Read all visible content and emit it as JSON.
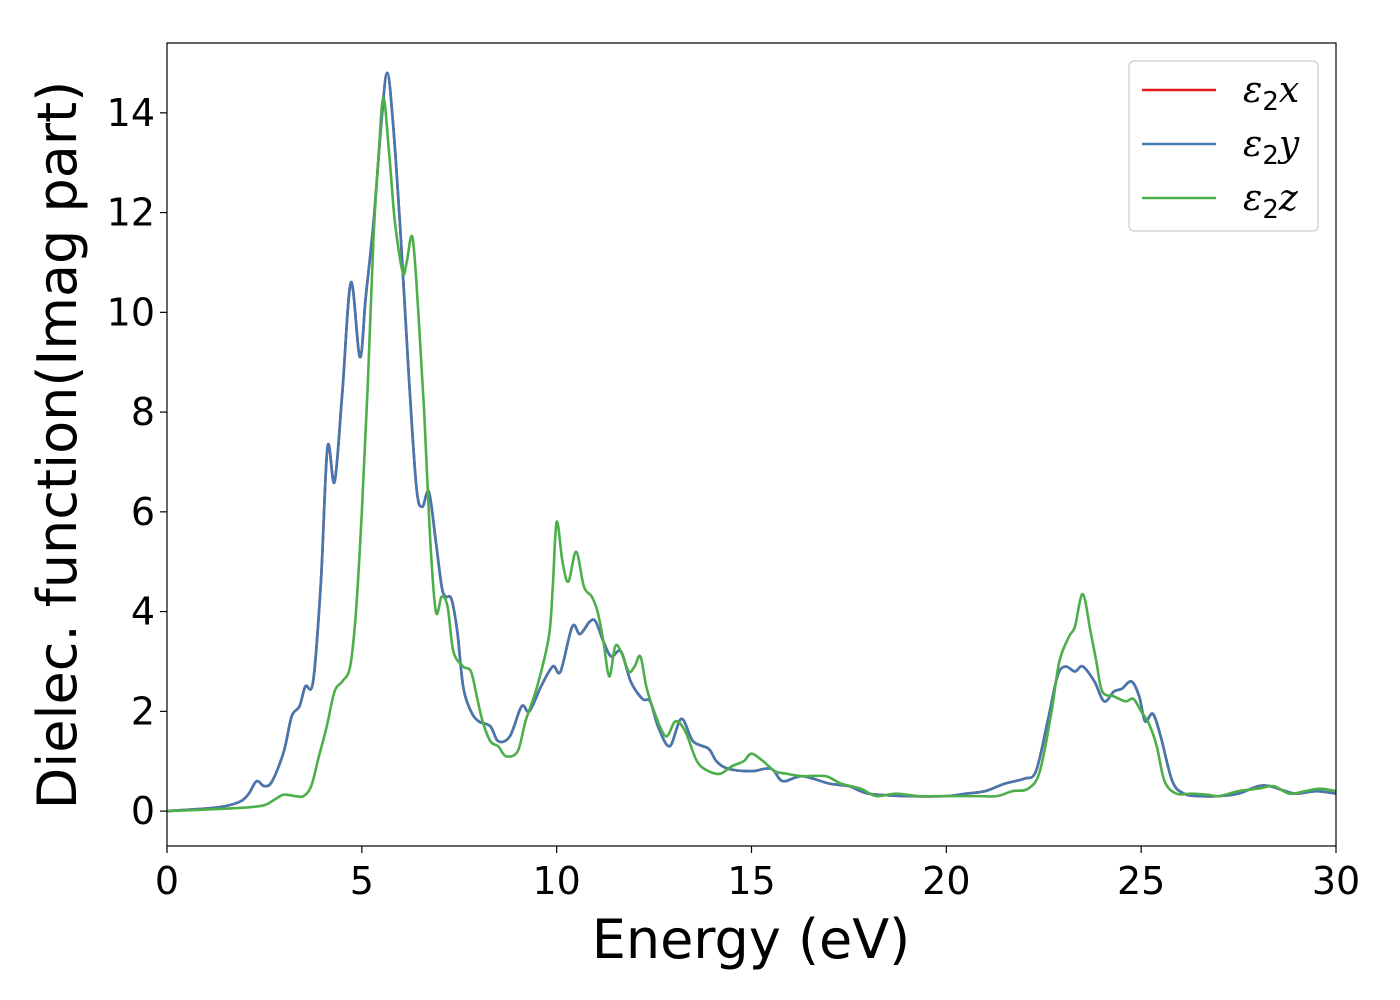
{
  "chart_data": {
    "type": "line",
    "title": "",
    "xlabel": "Energy (eV)",
    "ylabel": "Dielec. function(Imag part)",
    "xlim": [
      0,
      30
    ],
    "ylim": [
      -0.7,
      15.4
    ],
    "xticks": [
      0,
      5,
      10,
      15,
      20,
      25,
      30
    ],
    "yticks": [
      0,
      2,
      4,
      6,
      8,
      10,
      12,
      14
    ],
    "grid": false,
    "legend_position": "top-right",
    "series": [
      {
        "name_main": "ε",
        "name_sub": "2",
        "name_axis": "x",
        "color": "#e41a1c",
        "points": [
          [
            0,
            0
          ],
          [
            1,
            0.05
          ],
          [
            1.5,
            0.1
          ],
          [
            1.9,
            0.2
          ],
          [
            2.1,
            0.35
          ],
          [
            2.3,
            0.6
          ],
          [
            2.5,
            0.5
          ],
          [
            2.7,
            0.6
          ],
          [
            3,
            1.2
          ],
          [
            3.2,
            1.9
          ],
          [
            3.4,
            2.1
          ],
          [
            3.55,
            2.5
          ],
          [
            3.75,
            2.6
          ],
          [
            3.95,
            4.6
          ],
          [
            4.12,
            7.3
          ],
          [
            4.3,
            6.6
          ],
          [
            4.5,
            8.4
          ],
          [
            4.72,
            10.6
          ],
          [
            4.95,
            9.1
          ],
          [
            5.1,
            10.3
          ],
          [
            5.3,
            11.8
          ],
          [
            5.5,
            13.8
          ],
          [
            5.65,
            14.8
          ],
          [
            5.8,
            13.8
          ],
          [
            6.0,
            11.5
          ],
          [
            6.2,
            8.8
          ],
          [
            6.4,
            6.5
          ],
          [
            6.55,
            6.1
          ],
          [
            6.72,
            6.4
          ],
          [
            6.9,
            5.4
          ],
          [
            7.05,
            4.5
          ],
          [
            7.15,
            4.3
          ],
          [
            7.3,
            4.25
          ],
          [
            7.45,
            3.6
          ],
          [
            7.6,
            2.5
          ],
          [
            7.8,
            2.0
          ],
          [
            8.0,
            1.8
          ],
          [
            8.3,
            1.7
          ],
          [
            8.5,
            1.4
          ],
          [
            8.8,
            1.5
          ],
          [
            9.1,
            2.1
          ],
          [
            9.3,
            2.0
          ],
          [
            9.6,
            2.5
          ],
          [
            9.9,
            2.9
          ],
          [
            10.1,
            2.8
          ],
          [
            10.4,
            3.7
          ],
          [
            10.6,
            3.55
          ],
          [
            10.85,
            3.8
          ],
          [
            11.0,
            3.8
          ],
          [
            11.2,
            3.4
          ],
          [
            11.4,
            3.1
          ],
          [
            11.65,
            3.2
          ],
          [
            11.9,
            2.6
          ],
          [
            12.2,
            2.25
          ],
          [
            12.4,
            2.2
          ],
          [
            12.6,
            1.7
          ],
          [
            12.9,
            1.3
          ],
          [
            13.2,
            1.85
          ],
          [
            13.5,
            1.4
          ],
          [
            13.9,
            1.25
          ],
          [
            14.1,
            1.0
          ],
          [
            14.4,
            0.85
          ],
          [
            15.0,
            0.8
          ],
          [
            15.5,
            0.85
          ],
          [
            15.8,
            0.6
          ],
          [
            16.3,
            0.7
          ],
          [
            17.0,
            0.55
          ],
          [
            17.5,
            0.5
          ],
          [
            18.0,
            0.35
          ],
          [
            19.0,
            0.3
          ],
          [
            20.0,
            0.3
          ],
          [
            20.5,
            0.35
          ],
          [
            21.0,
            0.4
          ],
          [
            21.5,
            0.55
          ],
          [
            22.0,
            0.65
          ],
          [
            22.3,
            0.8
          ],
          [
            22.6,
            1.8
          ],
          [
            22.85,
            2.7
          ],
          [
            23.05,
            2.9
          ],
          [
            23.3,
            2.8
          ],
          [
            23.5,
            2.9
          ],
          [
            23.8,
            2.6
          ],
          [
            24.05,
            2.2
          ],
          [
            24.3,
            2.4
          ],
          [
            24.5,
            2.45
          ],
          [
            24.75,
            2.6
          ],
          [
            24.95,
            2.3
          ],
          [
            25.1,
            1.8
          ],
          [
            25.3,
            1.95
          ],
          [
            25.5,
            1.5
          ],
          [
            25.8,
            0.6
          ],
          [
            26.1,
            0.35
          ],
          [
            26.5,
            0.3
          ],
          [
            27.0,
            0.3
          ],
          [
            27.5,
            0.35
          ],
          [
            28.0,
            0.5
          ],
          [
            28.3,
            0.5
          ],
          [
            28.7,
            0.4
          ],
          [
            29.0,
            0.35
          ],
          [
            29.5,
            0.4
          ],
          [
            30,
            0.35
          ]
        ]
      },
      {
        "name_main": "ε",
        "name_sub": "2",
        "name_axis": "y",
        "color": "#4478b0",
        "points": [
          [
            0,
            0
          ],
          [
            1,
            0.05
          ],
          [
            1.5,
            0.1
          ],
          [
            1.9,
            0.2
          ],
          [
            2.1,
            0.35
          ],
          [
            2.3,
            0.6
          ],
          [
            2.5,
            0.5
          ],
          [
            2.7,
            0.6
          ],
          [
            3,
            1.2
          ],
          [
            3.2,
            1.9
          ],
          [
            3.4,
            2.1
          ],
          [
            3.55,
            2.5
          ],
          [
            3.75,
            2.6
          ],
          [
            3.95,
            4.6
          ],
          [
            4.12,
            7.3
          ],
          [
            4.3,
            6.6
          ],
          [
            4.5,
            8.4
          ],
          [
            4.72,
            10.6
          ],
          [
            4.95,
            9.1
          ],
          [
            5.1,
            10.3
          ],
          [
            5.3,
            11.8
          ],
          [
            5.5,
            13.8
          ],
          [
            5.65,
            14.8
          ],
          [
            5.8,
            13.8
          ],
          [
            6.0,
            11.5
          ],
          [
            6.2,
            8.8
          ],
          [
            6.4,
            6.5
          ],
          [
            6.55,
            6.1
          ],
          [
            6.72,
            6.4
          ],
          [
            6.9,
            5.4
          ],
          [
            7.05,
            4.5
          ],
          [
            7.15,
            4.3
          ],
          [
            7.3,
            4.25
          ],
          [
            7.45,
            3.6
          ],
          [
            7.6,
            2.5
          ],
          [
            7.8,
            2.0
          ],
          [
            8.0,
            1.8
          ],
          [
            8.3,
            1.7
          ],
          [
            8.5,
            1.4
          ],
          [
            8.8,
            1.5
          ],
          [
            9.1,
            2.1
          ],
          [
            9.3,
            2.0
          ],
          [
            9.6,
            2.5
          ],
          [
            9.9,
            2.9
          ],
          [
            10.1,
            2.8
          ],
          [
            10.4,
            3.7
          ],
          [
            10.6,
            3.55
          ],
          [
            10.85,
            3.8
          ],
          [
            11.0,
            3.8
          ],
          [
            11.2,
            3.4
          ],
          [
            11.4,
            3.1
          ],
          [
            11.65,
            3.2
          ],
          [
            11.9,
            2.6
          ],
          [
            12.2,
            2.25
          ],
          [
            12.4,
            2.2
          ],
          [
            12.6,
            1.7
          ],
          [
            12.9,
            1.3
          ],
          [
            13.2,
            1.85
          ],
          [
            13.5,
            1.4
          ],
          [
            13.9,
            1.25
          ],
          [
            14.1,
            1.0
          ],
          [
            14.4,
            0.85
          ],
          [
            15.0,
            0.8
          ],
          [
            15.5,
            0.85
          ],
          [
            15.8,
            0.6
          ],
          [
            16.3,
            0.7
          ],
          [
            17.0,
            0.55
          ],
          [
            17.5,
            0.5
          ],
          [
            18.0,
            0.35
          ],
          [
            19.0,
            0.3
          ],
          [
            20.0,
            0.3
          ],
          [
            20.5,
            0.35
          ],
          [
            21.0,
            0.4
          ],
          [
            21.5,
            0.55
          ],
          [
            22.0,
            0.65
          ],
          [
            22.3,
            0.8
          ],
          [
            22.6,
            1.8
          ],
          [
            22.85,
            2.7
          ],
          [
            23.05,
            2.9
          ],
          [
            23.3,
            2.8
          ],
          [
            23.5,
            2.9
          ],
          [
            23.8,
            2.6
          ],
          [
            24.05,
            2.2
          ],
          [
            24.3,
            2.4
          ],
          [
            24.5,
            2.45
          ],
          [
            24.75,
            2.6
          ],
          [
            24.95,
            2.3
          ],
          [
            25.1,
            1.8
          ],
          [
            25.3,
            1.95
          ],
          [
            25.5,
            1.5
          ],
          [
            25.8,
            0.6
          ],
          [
            26.1,
            0.35
          ],
          [
            26.5,
            0.3
          ],
          [
            27.0,
            0.3
          ],
          [
            27.5,
            0.35
          ],
          [
            28.0,
            0.5
          ],
          [
            28.3,
            0.5
          ],
          [
            28.7,
            0.4
          ],
          [
            29.0,
            0.35
          ],
          [
            29.5,
            0.4
          ],
          [
            30,
            0.35
          ]
        ]
      },
      {
        "name_main": "ε",
        "name_sub": "2",
        "name_axis": "z",
        "color": "#4daf4a",
        "points": [
          [
            0,
            0
          ],
          [
            1,
            0.03
          ],
          [
            2,
            0.07
          ],
          [
            2.5,
            0.12
          ],
          [
            2.8,
            0.25
          ],
          [
            3.0,
            0.33
          ],
          [
            3.3,
            0.3
          ],
          [
            3.5,
            0.3
          ],
          [
            3.7,
            0.5
          ],
          [
            3.9,
            1.1
          ],
          [
            4.1,
            1.7
          ],
          [
            4.3,
            2.4
          ],
          [
            4.5,
            2.6
          ],
          [
            4.7,
            2.9
          ],
          [
            4.85,
            4.0
          ],
          [
            5.0,
            6.0
          ],
          [
            5.15,
            8.5
          ],
          [
            5.3,
            11.5
          ],
          [
            5.42,
            13.0
          ],
          [
            5.55,
            14.3
          ],
          [
            5.7,
            13.2
          ],
          [
            5.85,
            11.8
          ],
          [
            6.05,
            10.8
          ],
          [
            6.15,
            11.0
          ],
          [
            6.3,
            11.5
          ],
          [
            6.45,
            10.0
          ],
          [
            6.6,
            8.0
          ],
          [
            6.75,
            5.5
          ],
          [
            6.9,
            4.0
          ],
          [
            7.05,
            4.3
          ],
          [
            7.2,
            4.1
          ],
          [
            7.35,
            3.2
          ],
          [
            7.6,
            2.9
          ],
          [
            7.8,
            2.8
          ],
          [
            7.95,
            2.3
          ],
          [
            8.1,
            1.8
          ],
          [
            8.3,
            1.4
          ],
          [
            8.5,
            1.3
          ],
          [
            8.7,
            1.1
          ],
          [
            9.0,
            1.2
          ],
          [
            9.2,
            1.8
          ],
          [
            9.5,
            2.5
          ],
          [
            9.8,
            3.5
          ],
          [
            9.9,
            4.5
          ],
          [
            10.0,
            5.8
          ],
          [
            10.15,
            5.0
          ],
          [
            10.3,
            4.6
          ],
          [
            10.5,
            5.2
          ],
          [
            10.7,
            4.5
          ],
          [
            10.9,
            4.3
          ],
          [
            11.05,
            4.0
          ],
          [
            11.2,
            3.4
          ],
          [
            11.35,
            2.7
          ],
          [
            11.5,
            3.3
          ],
          [
            11.65,
            3.2
          ],
          [
            11.85,
            2.8
          ],
          [
            12.0,
            2.9
          ],
          [
            12.15,
            3.1
          ],
          [
            12.3,
            2.5
          ],
          [
            12.5,
            2.0
          ],
          [
            12.8,
            1.5
          ],
          [
            13.05,
            1.8
          ],
          [
            13.3,
            1.6
          ],
          [
            13.6,
            1.0
          ],
          [
            13.9,
            0.8
          ],
          [
            14.2,
            0.75
          ],
          [
            14.5,
            0.9
          ],
          [
            14.8,
            1.0
          ],
          [
            15.0,
            1.15
          ],
          [
            15.3,
            1.0
          ],
          [
            15.6,
            0.8
          ],
          [
            15.9,
            0.75
          ],
          [
            16.3,
            0.7
          ],
          [
            16.9,
            0.7
          ],
          [
            17.3,
            0.55
          ],
          [
            17.8,
            0.45
          ],
          [
            18.2,
            0.3
          ],
          [
            18.7,
            0.35
          ],
          [
            19.3,
            0.3
          ],
          [
            20.0,
            0.3
          ],
          [
            20.8,
            0.3
          ],
          [
            21.3,
            0.3
          ],
          [
            21.7,
            0.4
          ],
          [
            22.1,
            0.45
          ],
          [
            22.4,
            0.8
          ],
          [
            22.7,
            2.0
          ],
          [
            22.9,
            3.0
          ],
          [
            23.15,
            3.5
          ],
          [
            23.3,
            3.7
          ],
          [
            23.5,
            4.35
          ],
          [
            23.7,
            3.6
          ],
          [
            23.85,
            3.0
          ],
          [
            24.0,
            2.4
          ],
          [
            24.3,
            2.3
          ],
          [
            24.6,
            2.2
          ],
          [
            24.8,
            2.25
          ],
          [
            25.0,
            2.0
          ],
          [
            25.2,
            1.75
          ],
          [
            25.4,
            1.3
          ],
          [
            25.6,
            0.6
          ],
          [
            25.9,
            0.35
          ],
          [
            26.3,
            0.35
          ],
          [
            26.7,
            0.33
          ],
          [
            27.0,
            0.3
          ],
          [
            27.5,
            0.4
          ],
          [
            28.0,
            0.45
          ],
          [
            28.4,
            0.5
          ],
          [
            28.8,
            0.35
          ],
          [
            29.2,
            0.4
          ],
          [
            29.6,
            0.45
          ],
          [
            30,
            0.4
          ]
        ]
      }
    ]
  }
}
